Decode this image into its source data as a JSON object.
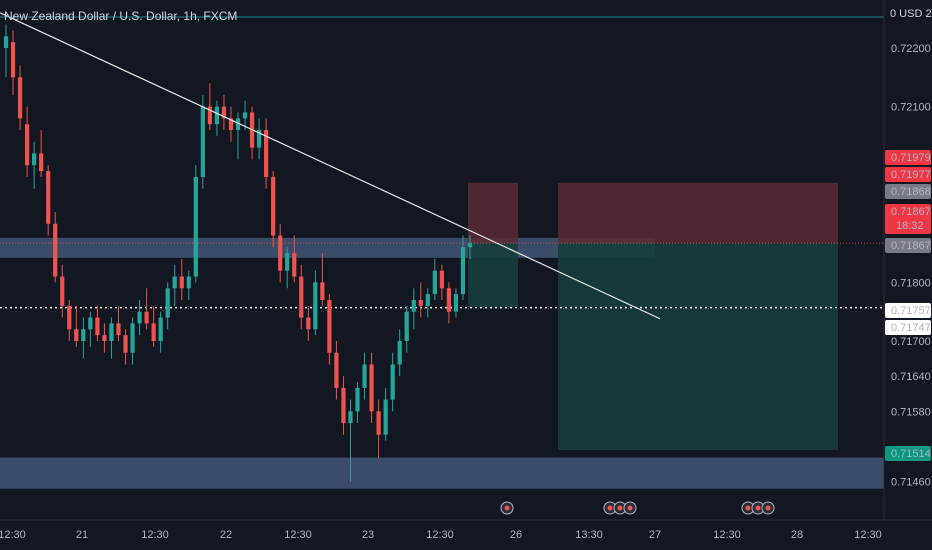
{
  "header": {
    "symbol_title": "New Zealand Dollar / U.S. Dollar, 1h, FXCM",
    "currency_label": "0  USD  2"
  },
  "colors": {
    "background": "#131722",
    "up": "#26a69a",
    "down": "#ef5350",
    "zone": "#4a5f82",
    "stop": "#5b2a33",
    "target": "#183d3c",
    "trendline": "#e6e6e6"
  },
  "chart_data": {
    "type": "candlestick",
    "symbol": "NZD/USD",
    "interval": "1h",
    "source": "FXCM",
    "ylim": [
      0.7142,
      0.7226
    ],
    "y_ticks": [
      "0.72200",
      "0.72100",
      "0.71800",
      "0.71700",
      "0.71640",
      "0.71580",
      "0.71460"
    ],
    "x_ticks": [
      "12:30",
      "21",
      "12:30",
      "22",
      "12:30",
      "23",
      "12:30",
      "26",
      "13:30",
      "27",
      "12:30",
      "28",
      "12:30"
    ],
    "price_tags": [
      {
        "label": "0.71979",
        "kind": "stop"
      },
      {
        "label": "0.71977",
        "kind": "stop"
      },
      {
        "label": "0.71868",
        "kind": "gray"
      },
      {
        "label": "0.71867",
        "kind": "red",
        "sub": "18:32"
      },
      {
        "label": "0.71867",
        "kind": "gray"
      },
      {
        "label": "0.71757",
        "kind": "white"
      },
      {
        "label": "0.71747",
        "kind": "white"
      },
      {
        "label": "0.71514",
        "kind": "target"
      }
    ],
    "zones": [
      {
        "name": "resistance",
        "from": 0.71842,
        "to": 0.71876
      },
      {
        "name": "support",
        "from": 0.71448,
        "to": 0.71501
      }
    ],
    "positions": [
      {
        "name": "short-1",
        "start": 0.7197,
        "entry": 0.71867,
        "target": 0.71757
      },
      {
        "name": "short-2",
        "start": 0.7197,
        "entry": 0.71867,
        "target": 0.71514
      }
    ],
    "trendline": {
      "start_price": 0.7226,
      "end_price": 0.71738
    },
    "horizontal_lines": [
      {
        "price": 0.71757,
        "style": "dotted",
        "color": "#ffffff"
      },
      {
        "price": 0.71867,
        "style": "dotted",
        "color": "#ef5350"
      }
    ],
    "candles": [
      [
        0.722,
        0.7224,
        0.7215,
        0.7222
      ],
      [
        0.7221,
        0.7223,
        0.7212,
        0.7215
      ],
      [
        0.7215,
        0.7217,
        0.7206,
        0.7208
      ],
      [
        0.7207,
        0.721,
        0.7198,
        0.72
      ],
      [
        0.72,
        0.7204,
        0.7196,
        0.7202
      ],
      [
        0.7202,
        0.7206,
        0.7198,
        0.7199
      ],
      [
        0.7199,
        0.72,
        0.7188,
        0.719
      ],
      [
        0.719,
        0.7192,
        0.718,
        0.7181
      ],
      [
        0.7181,
        0.7183,
        0.7174,
        0.7176
      ],
      [
        0.7176,
        0.7177,
        0.717,
        0.7172
      ],
      [
        0.7172,
        0.7176,
        0.7169,
        0.717
      ],
      [
        0.717,
        0.7174,
        0.7167,
        0.7172
      ],
      [
        0.7172,
        0.7175,
        0.7169,
        0.7174
      ],
      [
        0.7174,
        0.7176,
        0.717,
        0.7171
      ],
      [
        0.7171,
        0.7173,
        0.7168,
        0.717
      ],
      [
        0.717,
        0.7174,
        0.7167,
        0.7173
      ],
      [
        0.7173,
        0.7176,
        0.717,
        0.7171
      ],
      [
        0.7171,
        0.7172,
        0.7166,
        0.7168
      ],
      [
        0.7168,
        0.7174,
        0.7166,
        0.7173
      ],
      [
        0.7173,
        0.7177,
        0.7171,
        0.7175
      ],
      [
        0.7175,
        0.7179,
        0.7172,
        0.7173
      ],
      [
        0.7173,
        0.7176,
        0.7169,
        0.717
      ],
      [
        0.717,
        0.7175,
        0.7168,
        0.7174
      ],
      [
        0.7174,
        0.718,
        0.7172,
        0.7179
      ],
      [
        0.7179,
        0.7183,
        0.7176,
        0.7181
      ],
      [
        0.7181,
        0.7184,
        0.7177,
        0.7179
      ],
      [
        0.7179,
        0.7182,
        0.7177,
        0.7181
      ],
      [
        0.7181,
        0.72,
        0.718,
        0.7198
      ],
      [
        0.7198,
        0.7212,
        0.7196,
        0.721
      ],
      [
        0.721,
        0.7214,
        0.7206,
        0.7207
      ],
      [
        0.7207,
        0.7211,
        0.7205,
        0.721
      ],
      [
        0.721,
        0.7212,
        0.7206,
        0.7208
      ],
      [
        0.7208,
        0.721,
        0.7204,
        0.7206
      ],
      [
        0.7206,
        0.7209,
        0.7201,
        0.7208
      ],
      [
        0.7208,
        0.7211,
        0.7206,
        0.7209
      ],
      [
        0.7209,
        0.721,
        0.7201,
        0.7203
      ],
      [
        0.7203,
        0.7208,
        0.7201,
        0.7206
      ],
      [
        0.7206,
        0.7208,
        0.7196,
        0.7198
      ],
      [
        0.7198,
        0.7199,
        0.7186,
        0.7188
      ],
      [
        0.7188,
        0.719,
        0.718,
        0.7182
      ],
      [
        0.7182,
        0.7186,
        0.7179,
        0.7185
      ],
      [
        0.7185,
        0.7188,
        0.718,
        0.7181
      ],
      [
        0.7181,
        0.7183,
        0.7172,
        0.7174
      ],
      [
        0.7174,
        0.7176,
        0.717,
        0.7172
      ],
      [
        0.7172,
        0.7182,
        0.7171,
        0.718
      ],
      [
        0.718,
        0.7185,
        0.7176,
        0.7177
      ],
      [
        0.7177,
        0.7178,
        0.7166,
        0.7168
      ],
      [
        0.7168,
        0.717,
        0.716,
        0.7162
      ],
      [
        0.7162,
        0.7164,
        0.7154,
        0.7156
      ],
      [
        0.7156,
        0.716,
        0.7146,
        0.7158
      ],
      [
        0.7158,
        0.7163,
        0.7156,
        0.7162
      ],
      [
        0.7162,
        0.7168,
        0.716,
        0.7166
      ],
      [
        0.7166,
        0.7168,
        0.7156,
        0.7158
      ],
      [
        0.7158,
        0.716,
        0.715,
        0.7154
      ],
      [
        0.7154,
        0.7162,
        0.7153,
        0.716
      ],
      [
        0.716,
        0.7168,
        0.7158,
        0.7166
      ],
      [
        0.7166,
        0.7172,
        0.7164,
        0.717
      ],
      [
        0.717,
        0.7176,
        0.7168,
        0.7175
      ],
      [
        0.7175,
        0.7179,
        0.7172,
        0.7177
      ],
      [
        0.7177,
        0.718,
        0.7174,
        0.7176
      ],
      [
        0.7176,
        0.7179,
        0.7174,
        0.7178
      ],
      [
        0.7178,
        0.7184,
        0.7177,
        0.7182
      ],
      [
        0.7182,
        0.7183,
        0.7177,
        0.7179
      ],
      [
        0.7179,
        0.718,
        0.7173,
        0.7175
      ],
      [
        0.7175,
        0.7179,
        0.7174,
        0.7178
      ],
      [
        0.7178,
        0.7188,
        0.7177,
        0.7186
      ],
      [
        0.7186,
        0.7188,
        0.7184,
        0.71867
      ]
    ]
  }
}
